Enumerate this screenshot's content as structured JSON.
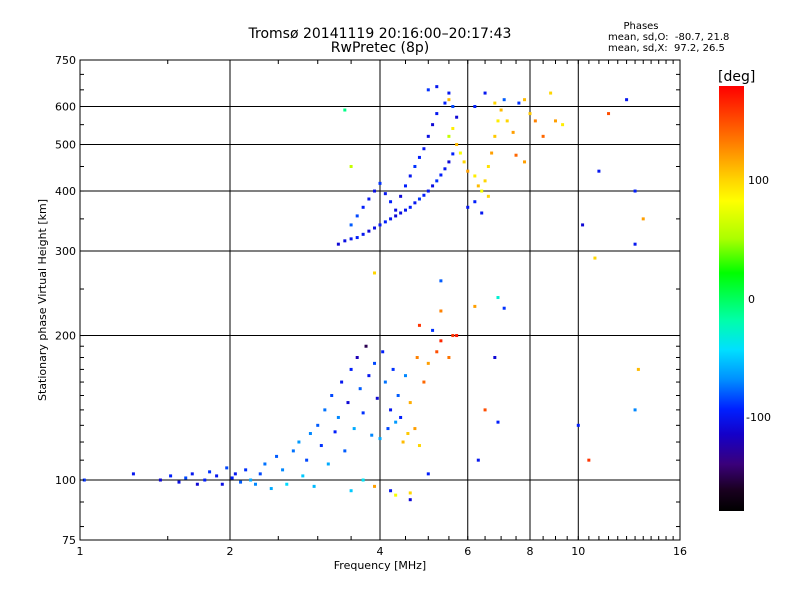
{
  "header": {
    "title_line1": "Tromsø 20141119 20:16:00–20:17:43",
    "title_line2": "RwPretec (8p)",
    "stats_heading": "Phases",
    "stats_o": "mean, sd,O:  -80.7, 21.8",
    "stats_x": "mean, sd,X:  97.2, 26.5"
  },
  "colorbar": {
    "unit_label": "[deg]",
    "tick_labels": [
      "100",
      "0",
      "-100"
    ],
    "tick_values": [
      100,
      0,
      -100
    ],
    "range": [
      -180,
      180
    ]
  },
  "chart_data": {
    "type": "scatter",
    "xlabel": "Frequency [MHz]",
    "ylabel": "Stationary phase Virtual Height [km]",
    "x_scale": "log",
    "y_scale": "log",
    "xlim": [
      1,
      16
    ],
    "ylim": [
      75,
      750
    ],
    "x_ticks": [
      1,
      2,
      4,
      6,
      8,
      10,
      16
    ],
    "x_tick_labels": [
      "1",
      "2",
      "4",
      "6",
      "8",
      "10",
      "16"
    ],
    "y_ticks": [
      75,
      100,
      200,
      300,
      400,
      500,
      600,
      750
    ],
    "y_tick_labels": [
      "75",
      "100",
      "200",
      "300",
      "400",
      "500",
      "600",
      "750"
    ],
    "grid": true,
    "color_by": "phase [deg]",
    "series": [
      {
        "values": [
          [
            1.02,
            100,
            -90
          ],
          [
            1.28,
            103,
            -100
          ],
          [
            1.45,
            100,
            -110
          ],
          [
            1.52,
            102,
            -95
          ],
          [
            1.58,
            99,
            -105
          ],
          [
            1.63,
            101,
            -85
          ],
          [
            1.68,
            103,
            -100
          ],
          [
            1.72,
            98,
            -110
          ],
          [
            1.78,
            100,
            -95
          ],
          [
            1.82,
            104,
            -90
          ],
          [
            1.88,
            102,
            -100
          ],
          [
            1.93,
            98,
            -105
          ],
          [
            1.97,
            106,
            -85
          ],
          [
            2.02,
            101,
            -95
          ],
          [
            2.05,
            103,
            -100
          ],
          [
            2.1,
            99,
            -80
          ],
          [
            2.15,
            105,
            -90
          ],
          [
            2.2,
            100,
            -60
          ],
          [
            2.25,
            98,
            -70
          ],
          [
            2.3,
            103,
            -85
          ],
          [
            2.35,
            108,
            -75
          ],
          [
            2.42,
            96,
            -60
          ],
          [
            2.48,
            112,
            -80
          ],
          [
            2.55,
            105,
            -70
          ],
          [
            2.6,
            98,
            -45
          ],
          [
            2.68,
            115,
            -75
          ],
          [
            2.75,
            120,
            -65
          ],
          [
            2.8,
            102,
            -50
          ],
          [
            2.85,
            110,
            -85
          ],
          [
            2.9,
            125,
            -70
          ],
          [
            2.95,
            97,
            -55
          ],
          [
            3.0,
            130,
            -80
          ],
          [
            3.05,
            118,
            -90
          ],
          [
            3.1,
            140,
            -75
          ],
          [
            3.15,
            108,
            -60
          ],
          [
            3.2,
            150,
            -85
          ],
          [
            3.25,
            126,
            -95
          ],
          [
            3.3,
            135,
            -70
          ],
          [
            3.35,
            160,
            -100
          ],
          [
            3.4,
            115,
            -80
          ],
          [
            3.45,
            145,
            -110
          ],
          [
            3.5,
            170,
            -95
          ],
          [
            3.55,
            128,
            -60
          ],
          [
            3.6,
            180,
            -120
          ],
          [
            3.65,
            155,
            -80
          ],
          [
            3.7,
            138,
            -90
          ],
          [
            3.75,
            190,
            -150
          ],
          [
            3.8,
            165,
            -100
          ],
          [
            3.85,
            124,
            -70
          ],
          [
            3.9,
            175,
            -85
          ],
          [
            3.95,
            148,
            -110
          ],
          [
            4.0,
            122,
            -60
          ],
          [
            4.05,
            185,
            -95
          ],
          [
            4.1,
            160,
            -75
          ],
          [
            4.15,
            128,
            -85
          ],
          [
            4.2,
            140,
            -100
          ],
          [
            4.25,
            170,
            -90
          ],
          [
            4.3,
            132,
            -65
          ],
          [
            4.35,
            150,
            -80
          ],
          [
            4.4,
            135,
            -95
          ],
          [
            4.45,
            120,
            110
          ],
          [
            4.5,
            165,
            -70
          ],
          [
            4.55,
            125,
            105
          ],
          [
            4.6,
            145,
            115
          ],
          [
            4.7,
            128,
            120
          ],
          [
            4.75,
            180,
            130
          ],
          [
            4.8,
            118,
            100
          ],
          [
            4.9,
            160,
            140
          ],
          [
            5.0,
            175,
            120
          ],
          [
            5.2,
            185,
            150
          ],
          [
            5.3,
            195,
            165
          ],
          [
            5.5,
            180,
            135
          ],
          [
            5.6,
            200,
            160
          ],
          [
            3.5,
            95,
            -50
          ],
          [
            3.7,
            100,
            -40
          ],
          [
            3.9,
            97,
            120
          ],
          [
            4.3,
            93,
            80
          ],
          [
            4.6,
            94,
            100
          ],
          [
            3.3,
            310,
            -110
          ],
          [
            3.4,
            315,
            -105
          ],
          [
            3.5,
            318,
            -100
          ],
          [
            3.6,
            320,
            -95
          ],
          [
            3.7,
            325,
            -100
          ],
          [
            3.8,
            330,
            -110
          ],
          [
            3.9,
            335,
            -105
          ],
          [
            4.0,
            340,
            -100
          ],
          [
            4.1,
            345,
            -95
          ],
          [
            4.2,
            350,
            -100
          ],
          [
            4.3,
            355,
            -110
          ],
          [
            4.4,
            360,
            -105
          ],
          [
            4.5,
            365,
            -100
          ],
          [
            4.6,
            370,
            -95
          ],
          [
            4.7,
            378,
            -100
          ],
          [
            4.8,
            385,
            -90
          ],
          [
            4.9,
            392,
            -95
          ],
          [
            5.0,
            400,
            -100
          ],
          [
            5.1,
            410,
            -105
          ],
          [
            5.2,
            420,
            -90
          ],
          [
            5.3,
            432,
            -95
          ],
          [
            5.4,
            445,
            -100
          ],
          [
            5.5,
            460,
            -110
          ],
          [
            5.6,
            478,
            -95
          ],
          [
            3.5,
            340,
            -80
          ],
          [
            3.6,
            355,
            -85
          ],
          [
            3.7,
            370,
            -95
          ],
          [
            3.8,
            385,
            -100
          ],
          [
            3.9,
            400,
            -105
          ],
          [
            4.0,
            415,
            -90
          ],
          [
            4.1,
            395,
            -100
          ],
          [
            4.2,
            380,
            -95
          ],
          [
            4.3,
            365,
            -105
          ],
          [
            4.4,
            390,
            -110
          ],
          [
            4.5,
            410,
            -95
          ],
          [
            4.6,
            430,
            -100
          ],
          [
            4.7,
            450,
            -90
          ],
          [
            4.8,
            470,
            -95
          ],
          [
            4.9,
            490,
            -100
          ],
          [
            5.0,
            520,
            -105
          ],
          [
            5.1,
            550,
            -110
          ],
          [
            5.2,
            580,
            -100
          ],
          [
            5.4,
            610,
            -95
          ],
          [
            5.5,
            640,
            -100
          ],
          [
            5.6,
            600,
            -85
          ],
          [
            5.7,
            570,
            -110
          ],
          [
            5.5,
            520,
            60
          ],
          [
            5.6,
            540,
            90
          ],
          [
            5.7,
            500,
            110
          ],
          [
            5.8,
            480,
            80
          ],
          [
            5.9,
            460,
            100
          ],
          [
            6.0,
            440,
            120
          ],
          [
            6.2,
            430,
            90
          ],
          [
            6.3,
            410,
            110
          ],
          [
            6.4,
            400,
            80
          ],
          [
            6.5,
            420,
            100
          ],
          [
            6.6,
            450,
            95
          ],
          [
            6.7,
            480,
            120
          ],
          [
            6.8,
            520,
            105
          ],
          [
            6.9,
            560,
            90
          ],
          [
            7.0,
            590,
            110
          ],
          [
            7.1,
            620,
            -80
          ],
          [
            7.2,
            560,
            100
          ],
          [
            7.4,
            530,
            120
          ],
          [
            7.6,
            610,
            -90
          ],
          [
            7.8,
            620,
            110
          ],
          [
            8.0,
            580,
            105
          ],
          [
            8.2,
            560,
            130
          ],
          [
            8.5,
            520,
            140
          ],
          [
            8.8,
            640,
            100
          ],
          [
            9.0,
            560,
            120
          ],
          [
            9.3,
            550,
            90
          ],
          [
            6.2,
            600,
            -95
          ],
          [
            6.5,
            640,
            -100
          ],
          [
            6.8,
            610,
            100
          ],
          [
            5.0,
            650,
            -90
          ],
          [
            5.2,
            660,
            -100
          ],
          [
            5.5,
            620,
            110
          ],
          [
            7.5,
            475,
            140
          ],
          [
            7.8,
            460,
            120
          ],
          [
            6.0,
            370,
            -100
          ],
          [
            6.2,
            380,
            -95
          ],
          [
            6.4,
            360,
            -100
          ],
          [
            6.6,
            390,
            100
          ],
          [
            3.5,
            450,
            60
          ],
          [
            3.4,
            590,
            -10
          ],
          [
            11.0,
            440,
            -100
          ],
          [
            11.5,
            580,
            150
          ],
          [
            12.5,
            620,
            -100
          ],
          [
            13.0,
            400,
            -95
          ],
          [
            13.5,
            350,
            120
          ],
          [
            13.0,
            310,
            -100
          ],
          [
            10.2,
            340,
            -110
          ],
          [
            10.8,
            290,
            100
          ],
          [
            13.0,
            140,
            -70
          ],
          [
            13.2,
            170,
            110
          ],
          [
            10.5,
            110,
            160
          ],
          [
            10.0,
            130,
            -95
          ],
          [
            6.3,
            110,
            -100
          ],
          [
            6.8,
            180,
            -110
          ],
          [
            6.5,
            140,
            150
          ],
          [
            6.9,
            132,
            -95
          ],
          [
            6.9,
            240,
            -30
          ],
          [
            4.8,
            210,
            160
          ],
          [
            3.9,
            270,
            100
          ],
          [
            5.3,
            260,
            -80
          ],
          [
            5.1,
            205,
            -90
          ],
          [
            5.3,
            225,
            130
          ],
          [
            5.7,
            200,
            170
          ],
          [
            6.2,
            230,
            120
          ],
          [
            7.1,
            228,
            -90
          ],
          [
            4.2,
            95,
            -100
          ],
          [
            4.6,
            91,
            -110
          ],
          [
            5.0,
            103,
            -95
          ]
        ]
      }
    ]
  }
}
